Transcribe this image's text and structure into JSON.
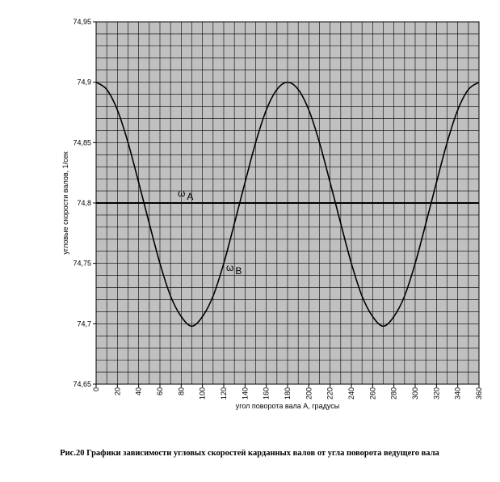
{
  "chart_data": {
    "type": "line",
    "x_label": "угол поворота вала А, градусы",
    "y_label": "угловые скорости валов, 1/сек",
    "caption": "Рис.20 Графики зависимости угловых скоростей карданных валов от угла поворота ведущего вала",
    "x": [
      0,
      10,
      20,
      30,
      40,
      50,
      60,
      70,
      80,
      90,
      100,
      110,
      120,
      130,
      140,
      150,
      160,
      170,
      180,
      190,
      200,
      210,
      220,
      230,
      240,
      250,
      260,
      270,
      280,
      290,
      300,
      310,
      320,
      330,
      340,
      350,
      360
    ],
    "series": [
      {
        "name": "ωA",
        "color": "#000000",
        "values": [
          74.8,
          74.8,
          74.8,
          74.8,
          74.8,
          74.8,
          74.8,
          74.8,
          74.8,
          74.8,
          74.8,
          74.8,
          74.8,
          74.8,
          74.8,
          74.8,
          74.8,
          74.8,
          74.8,
          74.8,
          74.8,
          74.8,
          74.8,
          74.8,
          74.8,
          74.8,
          74.8,
          74.8,
          74.8,
          74.8,
          74.8,
          74.8,
          74.8,
          74.8,
          74.8,
          74.8,
          74.8
        ]
      },
      {
        "name": "ωB",
        "color": "#000000",
        "values": [
          74.9,
          74.894,
          74.877,
          74.85,
          74.817,
          74.783,
          74.75,
          74.723,
          74.706,
          74.698,
          74.706,
          74.723,
          74.75,
          74.783,
          74.817,
          74.85,
          74.877,
          74.894,
          74.9,
          74.894,
          74.877,
          74.85,
          74.817,
          74.783,
          74.75,
          74.723,
          74.706,
          74.698,
          74.706,
          74.723,
          74.75,
          74.783,
          74.817,
          74.85,
          74.877,
          74.894,
          74.9
        ]
      }
    ],
    "xlim": [
      0,
      360
    ],
    "xticks": [
      0,
      20,
      40,
      60,
      80,
      100,
      120,
      140,
      160,
      180,
      200,
      220,
      240,
      260,
      280,
      300,
      320,
      340,
      360
    ],
    "ylim": [
      74.65,
      74.95
    ],
    "yticks": [
      {
        "value": 74.65,
        "label": "74,65"
      },
      {
        "value": 74.7,
        "label": "74,7"
      },
      {
        "value": 74.75,
        "label": "74,75"
      },
      {
        "value": 74.8,
        "label": "74,8"
      },
      {
        "value": 74.85,
        "label": "74,85"
      },
      {
        "value": 74.9,
        "label": "74,9"
      },
      {
        "value": 74.95,
        "label": "74,95"
      }
    ],
    "minor_grid": {
      "x": 10,
      "y": 0.01
    },
    "grid": true
  }
}
